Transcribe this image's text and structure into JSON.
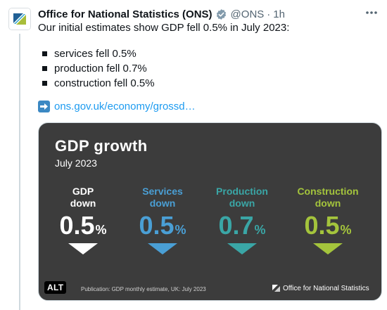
{
  "tweet": {
    "author": "Office for National Statistics (ONS)",
    "handle": "@ONS",
    "separator": "·",
    "time": "1h",
    "intro": "Our initial estimates show GDP fell 0.5% in July 2023:",
    "bullets": [
      "services fell 0.5%",
      "production fell 0.7%",
      "construction fell 0.5%"
    ],
    "link": "ons.gov.uk/economy/grossd…"
  },
  "card": {
    "title": "GDP growth",
    "subtitle": "July 2023",
    "stats": [
      {
        "label_1": "GDP",
        "label_2": "down",
        "value": "0.5",
        "unit": "%",
        "color": "#ffffff"
      },
      {
        "label_1": "Services",
        "label_2": "down",
        "value": "0.5",
        "unit": "%",
        "color": "#4a9fd5"
      },
      {
        "label_1": "Production",
        "label_2": "down",
        "value": "0.7",
        "unit": "%",
        "color": "#3aa6a6"
      },
      {
        "label_1": "Construction",
        "label_2": "down",
        "value": "0.5",
        "unit": "%",
        "color": "#a4c43c"
      }
    ],
    "alt_badge": "ALT",
    "source": "Publication: GDP monthly estimate, UK: July 2023",
    "brand": "Office for National Statistics"
  },
  "icons": {
    "avatar": "ons-logo-icon",
    "verified": "verified-badge-icon",
    "more": "more-options-icon",
    "link_arrow": "right-arrow-emoji-icon",
    "stat_arrow": "down-triangle-icon"
  }
}
